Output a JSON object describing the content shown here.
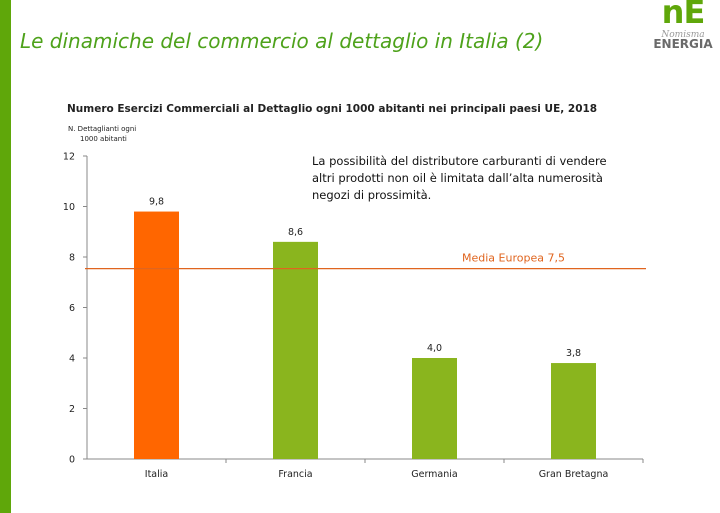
{
  "slide": {
    "title": "Le dinamiche del commercio al dettaglio in Italia (2)",
    "brand_color": "#5fa70a"
  },
  "logo": {
    "top": "nE",
    "middle": "Nomisma",
    "bottom": "ENERGIA"
  },
  "annotation": "La possibilità del distributore carburanti di vendere altri prodotti non oil è limitata dall’alta numerosità negozi di prossimità.",
  "chart_data": {
    "type": "bar",
    "title": "Numero Esercizi Commerciali al Dettaglio ogni 1000 abitanti nei principali paesi UE, 2018",
    "ylabel_lines": [
      "N. Dettaglianti ogni",
      "1000 abitanti"
    ],
    "xlabel": "",
    "ylim": [
      0,
      12
    ],
    "yticks": [
      "0",
      "2",
      "4",
      "6",
      "8",
      "10",
      "12"
    ],
    "categories": [
      "Italia",
      "Francia",
      "Germania",
      "Gran Bretagna"
    ],
    "values": [
      9.8,
      8.6,
      4.0,
      3.8
    ],
    "value_labels": [
      "9,8",
      "8,6",
      "4,0",
      "3,8"
    ],
    "bar_colors": [
      "#ff6600",
      "#8ab51e",
      "#8ab51e",
      "#8ab51e"
    ],
    "reference_line": {
      "label": "Media Europea 7,5",
      "value": 7.5,
      "color": "#e0651f"
    },
    "grid": false,
    "legend": "none"
  }
}
